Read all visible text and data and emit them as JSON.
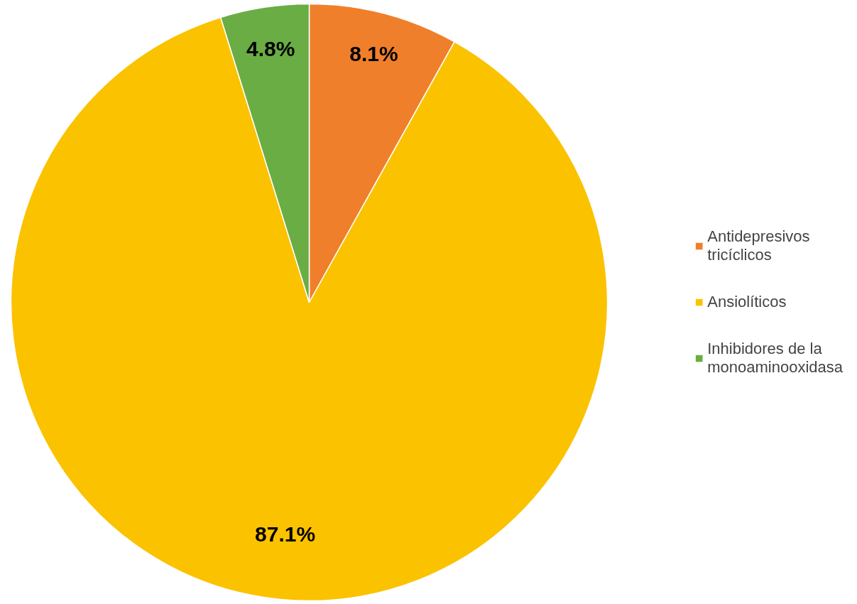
{
  "chart_data": {
    "type": "pie",
    "categories": [
      "Antidepresivos tricíclicos",
      "Ansiolíticos",
      "Inhibidores de la monoaminooxidasa"
    ],
    "values": [
      8.1,
      87.1,
      4.8
    ],
    "colors": [
      "#f07f2b",
      "#fbc200",
      "#6aad44"
    ],
    "value_labels": [
      "8.1%",
      "87.1%",
      "4.8%"
    ],
    "legend": "right"
  }
}
